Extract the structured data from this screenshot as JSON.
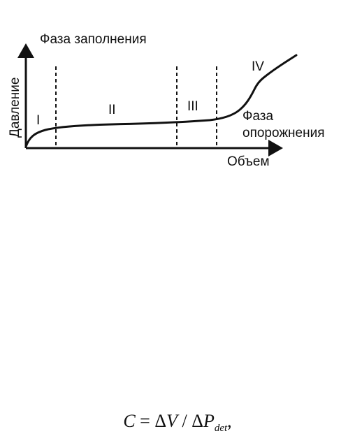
{
  "diagram": {
    "filling_phase_label": "Фаза заполнения",
    "y_axis_label": "Давление",
    "x_axis_label": "Объем",
    "emptying_phase_label_line1": "Фаза",
    "emptying_phase_label_line2": "опорожнения",
    "zones": [
      "I",
      "II",
      "III",
      "IV"
    ]
  },
  "formula": {
    "lhs": "C",
    "equals": " = ",
    "delta1": "Δ",
    "v": "V",
    "slash": " / ",
    "delta2": "Δ",
    "p": "P",
    "sub": "det",
    "trail": ","
  }
}
